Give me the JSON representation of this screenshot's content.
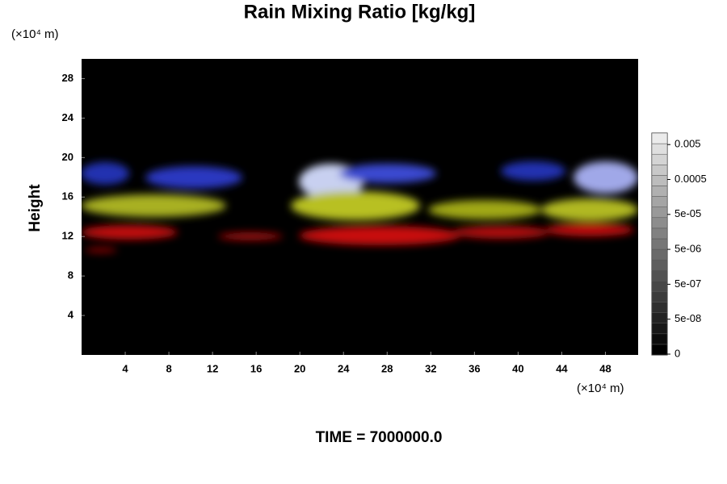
{
  "chart_data": {
    "type": "volume",
    "title": "Rain Mixing Ratio [kg/kg]",
    "y_label": "Height",
    "y_unit": "(×10⁴ m)",
    "x_unit": "(×10⁴ m)",
    "footer": "TIME = 7000000.0",
    "xlim": [
      0,
      51
    ],
    "xticks": [
      4,
      8,
      12,
      16,
      20,
      24,
      28,
      32,
      36,
      40,
      44,
      48
    ],
    "ylim": [
      0,
      30
    ],
    "yticks": [
      4,
      8,
      12,
      16,
      20,
      24,
      28
    ],
    "colorbar_ticks": [
      0,
      {
        "value": 5e-08,
        "label": "5e-08"
      },
      {
        "value": 5e-07,
        "label": "5e-07"
      },
      {
        "value": 5e-06,
        "label": "5e-06"
      },
      {
        "value": 5e-05,
        "label": "5e-05"
      },
      0.0005,
      0.005
    ]
  }
}
